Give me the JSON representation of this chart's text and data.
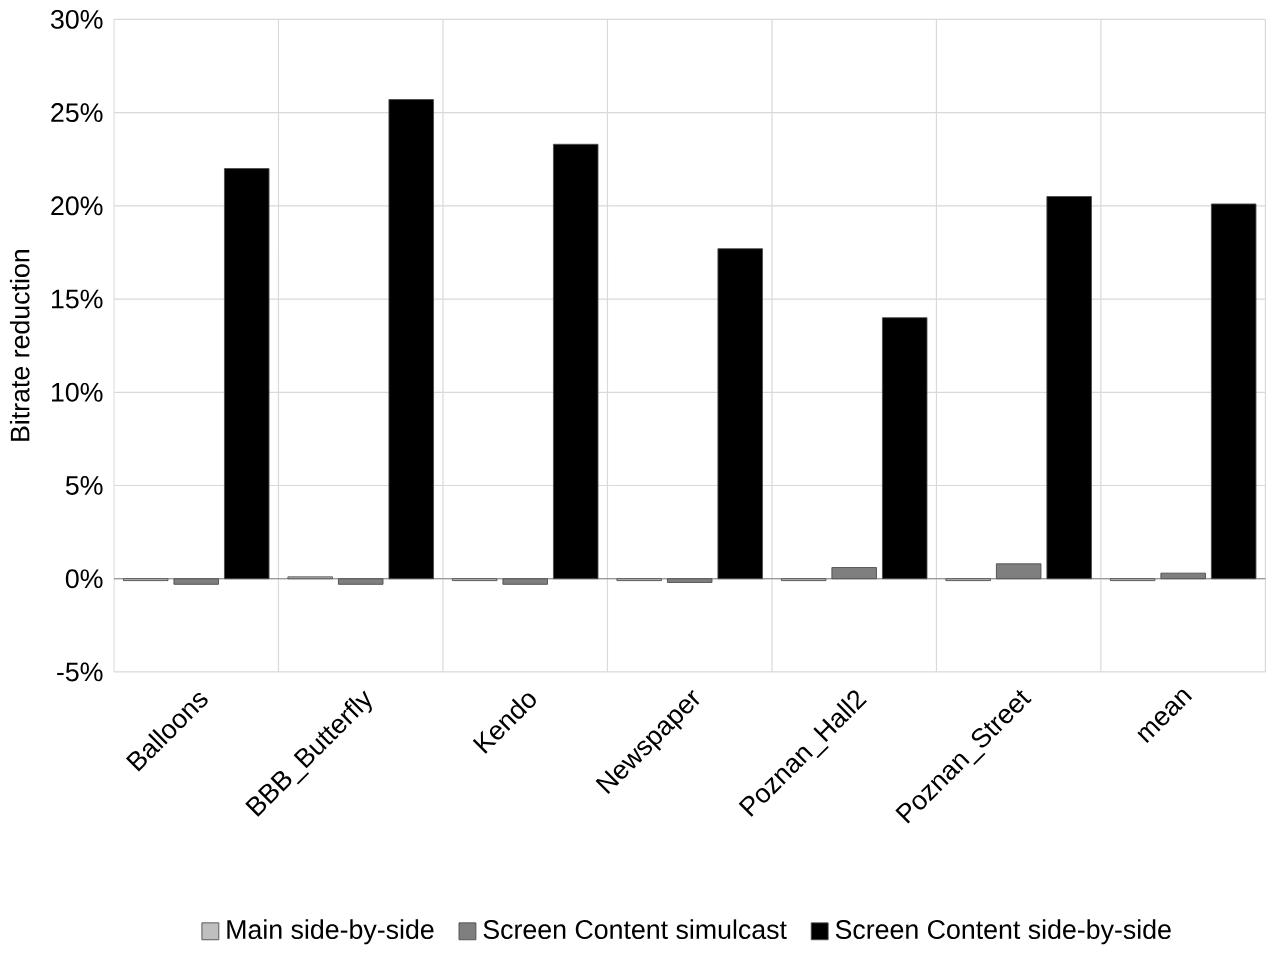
{
  "chart_data": {
    "type": "bar",
    "ylabel": "Bitrate reduction",
    "categories": [
      "Balloons",
      "BBB_Butterfly",
      "Kendo",
      "Newspaper",
      "Poznan_Hall2",
      "Poznan_Street",
      "mean"
    ],
    "series": [
      {
        "name": "Main side-by-side",
        "color": "#bfbfbf",
        "values": [
          -0.1,
          0.1,
          -0.1,
          -0.1,
          -0.1,
          -0.1,
          -0.1
        ]
      },
      {
        "name": "Screen Content simulcast",
        "color": "#7f7f7f",
        "values": [
          -0.3,
          -0.3,
          -0.3,
          -0.2,
          0.6,
          0.8,
          0.3
        ]
      },
      {
        "name": "Screen Content side-by-side",
        "color": "#000000",
        "values": [
          22.0,
          25.7,
          23.3,
          17.7,
          14.0,
          20.5,
          20.1
        ]
      }
    ],
    "ylim": [
      -5,
      30
    ],
    "yticks": [
      {
        "value": -5,
        "label": "-5%"
      },
      {
        "value": 0,
        "label": "0%"
      },
      {
        "value": 5,
        "label": "5%"
      },
      {
        "value": 10,
        "label": "10%"
      },
      {
        "value": 15,
        "label": "15%"
      },
      {
        "value": 20,
        "label": "20%"
      },
      {
        "value": 25,
        "label": "25%"
      },
      {
        "value": 30,
        "label": "30%"
      }
    ],
    "grid": true,
    "legend": "bottom"
  }
}
